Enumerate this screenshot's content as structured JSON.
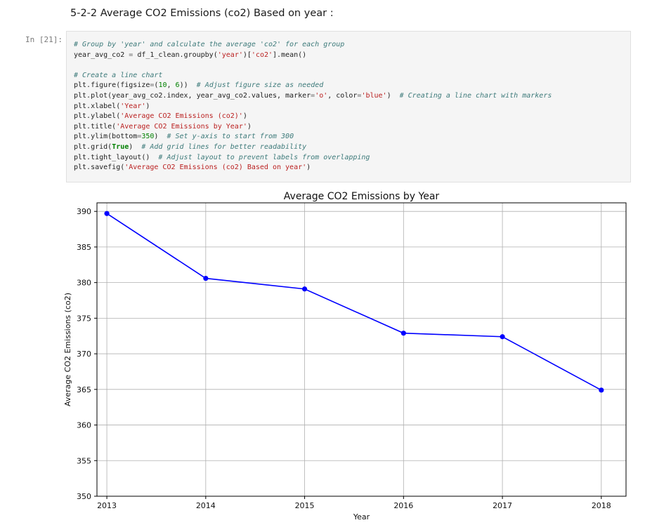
{
  "heading": "5-2-2 Average CO2 Emissions (co2) Based on year :",
  "prompt": "In [21]:",
  "code_lines": [
    [
      {
        "t": "# Group by 'year' and calculate the average 'co2' for each group",
        "c": "cm"
      }
    ],
    [
      {
        "t": "year_avg_co2 "
      },
      {
        "t": "=",
        "c": "op"
      },
      {
        "t": " df_1_clean.groupby("
      },
      {
        "t": "'year'",
        "c": "str"
      },
      {
        "t": ")["
      },
      {
        "t": "'co2'",
        "c": "str"
      },
      {
        "t": "].mean()"
      }
    ],
    [
      {
        "t": ""
      }
    ],
    [
      {
        "t": "# Create a line chart",
        "c": "cm"
      }
    ],
    [
      {
        "t": "plt.figure(figsize"
      },
      {
        "t": "=",
        "c": "op"
      },
      {
        "t": "("
      },
      {
        "t": "10",
        "c": "num"
      },
      {
        "t": ", "
      },
      {
        "t": "6",
        "c": "num"
      },
      {
        "t": "))  "
      },
      {
        "t": "# Adjust figure size as needed",
        "c": "cm"
      }
    ],
    [
      {
        "t": "plt.plot(year_avg_co2.index, year_avg_co2.values, marker"
      },
      {
        "t": "=",
        "c": "op"
      },
      {
        "t": "'o'",
        "c": "str"
      },
      {
        "t": ", color"
      },
      {
        "t": "=",
        "c": "op"
      },
      {
        "t": "'blue'",
        "c": "str"
      },
      {
        "t": ")  "
      },
      {
        "t": "# Creating a line chart with markers",
        "c": "cm"
      }
    ],
    [
      {
        "t": "plt.xlabel("
      },
      {
        "t": "'Year'",
        "c": "str"
      },
      {
        "t": ")"
      }
    ],
    [
      {
        "t": "plt.ylabel("
      },
      {
        "t": "'Average CO2 Emissions (co2)'",
        "c": "str"
      },
      {
        "t": ")"
      }
    ],
    [
      {
        "t": "plt.title("
      },
      {
        "t": "'Average CO2 Emissions by Year'",
        "c": "str"
      },
      {
        "t": ")"
      }
    ],
    [
      {
        "t": "plt.ylim(bottom"
      },
      {
        "t": "=",
        "c": "op"
      },
      {
        "t": "350",
        "c": "num"
      },
      {
        "t": ")  "
      },
      {
        "t": "# Set y-axis to start from 300",
        "c": "cm"
      }
    ],
    [
      {
        "t": "plt.grid("
      },
      {
        "t": "True",
        "c": "kw"
      },
      {
        "t": ")  "
      },
      {
        "t": "# Add grid lines for better readability",
        "c": "cm"
      }
    ],
    [
      {
        "t": "plt.tight_layout()  "
      },
      {
        "t": "# Adjust layout to prevent labels from overlapping",
        "c": "cm"
      }
    ],
    [
      {
        "t": "plt.savefig("
      },
      {
        "t": "'Average CO2 Emissions (co2) Based on year'",
        "c": "str"
      },
      {
        "t": ")"
      }
    ]
  ],
  "chart_data": {
    "type": "line",
    "title": "Average CO2 Emissions by Year",
    "xlabel": "Year",
    "ylabel": "Average CO2 Emissions (co2)",
    "x": [
      2013,
      2014,
      2015,
      2016,
      2017,
      2018
    ],
    "series": [
      {
        "values": [
          389.7,
          380.6,
          379.1,
          372.9,
          372.4,
          364.9
        ],
        "color": "#0000ff",
        "marker": "o"
      }
    ],
    "xlim": [
      2012.9,
      2018.25
    ],
    "ylim": [
      350,
      391.2
    ],
    "yticks": [
      350,
      355,
      360,
      365,
      370,
      375,
      380,
      385,
      390
    ],
    "xticks": [
      2013,
      2014,
      2015,
      2016,
      2017,
      2018
    ],
    "grid": true
  }
}
